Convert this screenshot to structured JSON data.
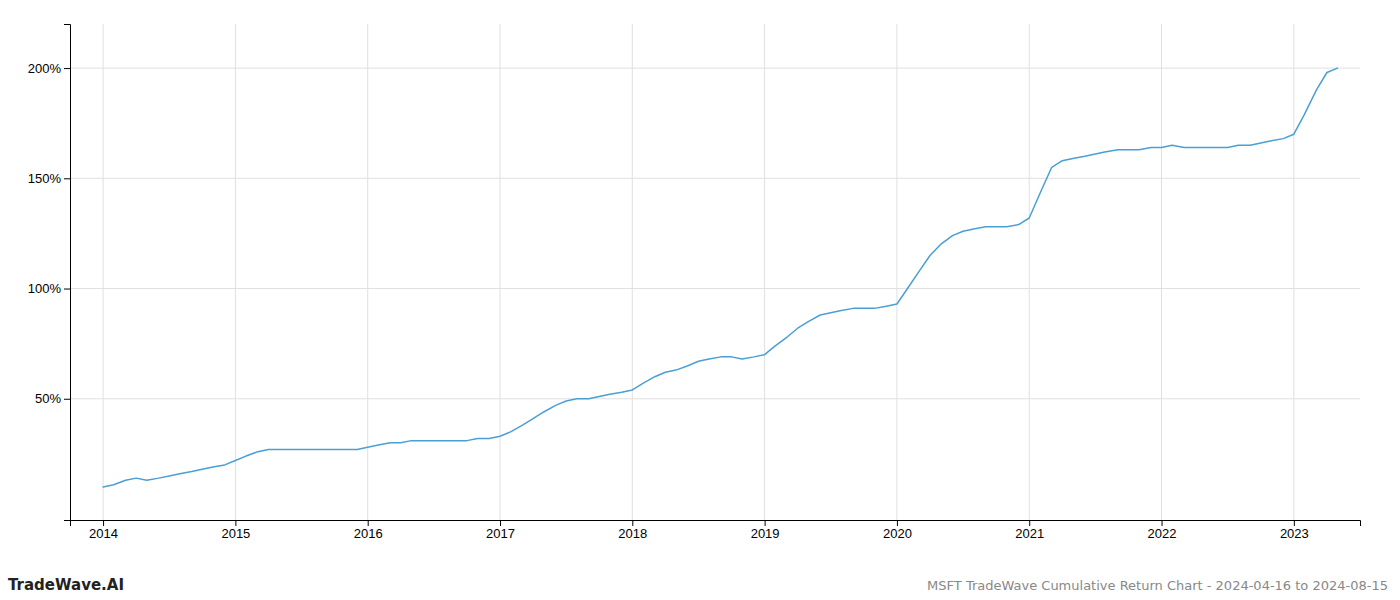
{
  "chart_data": {
    "type": "line",
    "title": "MSFT TradeWave Cumulative Return Chart - 2024-04-16 to 2024-08-15",
    "annotations": [
      "TradeWave.AI"
    ],
    "x": [
      2014.0,
      2014.08,
      2014.17,
      2014.25,
      2014.33,
      2014.42,
      2014.5,
      2014.58,
      2014.67,
      2014.75,
      2014.83,
      2014.92,
      2015.0,
      2015.08,
      2015.17,
      2015.25,
      2015.33,
      2015.42,
      2015.5,
      2015.58,
      2015.67,
      2015.75,
      2015.83,
      2015.92,
      2016.0,
      2016.08,
      2016.17,
      2016.25,
      2016.33,
      2016.42,
      2016.5,
      2016.58,
      2016.67,
      2016.75,
      2016.83,
      2016.92,
      2017.0,
      2017.08,
      2017.17,
      2017.25,
      2017.33,
      2017.42,
      2017.5,
      2017.58,
      2017.67,
      2017.75,
      2017.83,
      2017.92,
      2018.0,
      2018.08,
      2018.17,
      2018.25,
      2018.33,
      2018.42,
      2018.5,
      2018.58,
      2018.67,
      2018.75,
      2018.83,
      2018.92,
      2019.0,
      2019.08,
      2019.17,
      2019.25,
      2019.33,
      2019.42,
      2019.5,
      2019.58,
      2019.67,
      2019.75,
      2019.83,
      2019.92,
      2020.0,
      2020.08,
      2020.17,
      2020.25,
      2020.33,
      2020.42,
      2020.5,
      2020.58,
      2020.67,
      2020.75,
      2020.83,
      2020.92,
      2021.0,
      2021.08,
      2021.17,
      2021.25,
      2021.33,
      2021.42,
      2021.5,
      2021.58,
      2021.67,
      2021.75,
      2021.83,
      2021.92,
      2022.0,
      2022.08,
      2022.17,
      2022.25,
      2022.33,
      2022.42,
      2022.5,
      2022.58,
      2022.67,
      2022.75,
      2022.83,
      2022.92,
      2023.0,
      2023.08,
      2023.17,
      2023.25,
      2023.33
    ],
    "values": [
      10,
      11,
      13,
      14,
      13,
      14,
      15,
      16,
      17,
      18,
      19,
      20,
      22,
      24,
      26,
      27,
      27,
      27,
      27,
      27,
      27,
      27,
      27,
      27,
      28,
      29,
      30,
      30,
      31,
      31,
      31,
      31,
      31,
      31,
      32,
      32,
      33,
      35,
      38,
      41,
      44,
      47,
      49,
      50,
      50,
      51,
      52,
      53,
      54,
      57,
      60,
      62,
      63,
      65,
      67,
      68,
      69,
      69,
      68,
      69,
      70,
      74,
      78,
      82,
      85,
      88,
      89,
      90,
      91,
      91,
      91,
      92,
      93,
      100,
      108,
      115,
      120,
      124,
      126,
      127,
      128,
      128,
      128,
      129,
      132,
      143,
      155,
      158,
      159,
      160,
      161,
      162,
      163,
      163,
      163,
      164,
      164,
      165,
      164,
      164,
      164,
      164,
      164,
      165,
      165,
      166,
      167,
      168,
      170,
      179,
      190,
      198,
      200
    ],
    "color": "#4a9fd4",
    "xlim": [
      2013.75,
      2023.5
    ],
    "xticks": [
      2014,
      2015,
      2016,
      2017,
      2018,
      2019,
      2020,
      2021,
      2022,
      2023
    ],
    "ylim": [
      -5,
      220
    ],
    "yticks": [
      {
        "value": 50,
        "label": "50%"
      },
      {
        "value": 100,
        "label": "100%"
      },
      {
        "value": 150,
        "label": "150%"
      },
      {
        "value": 200,
        "label": "200%"
      }
    ],
    "grid": true
  }
}
